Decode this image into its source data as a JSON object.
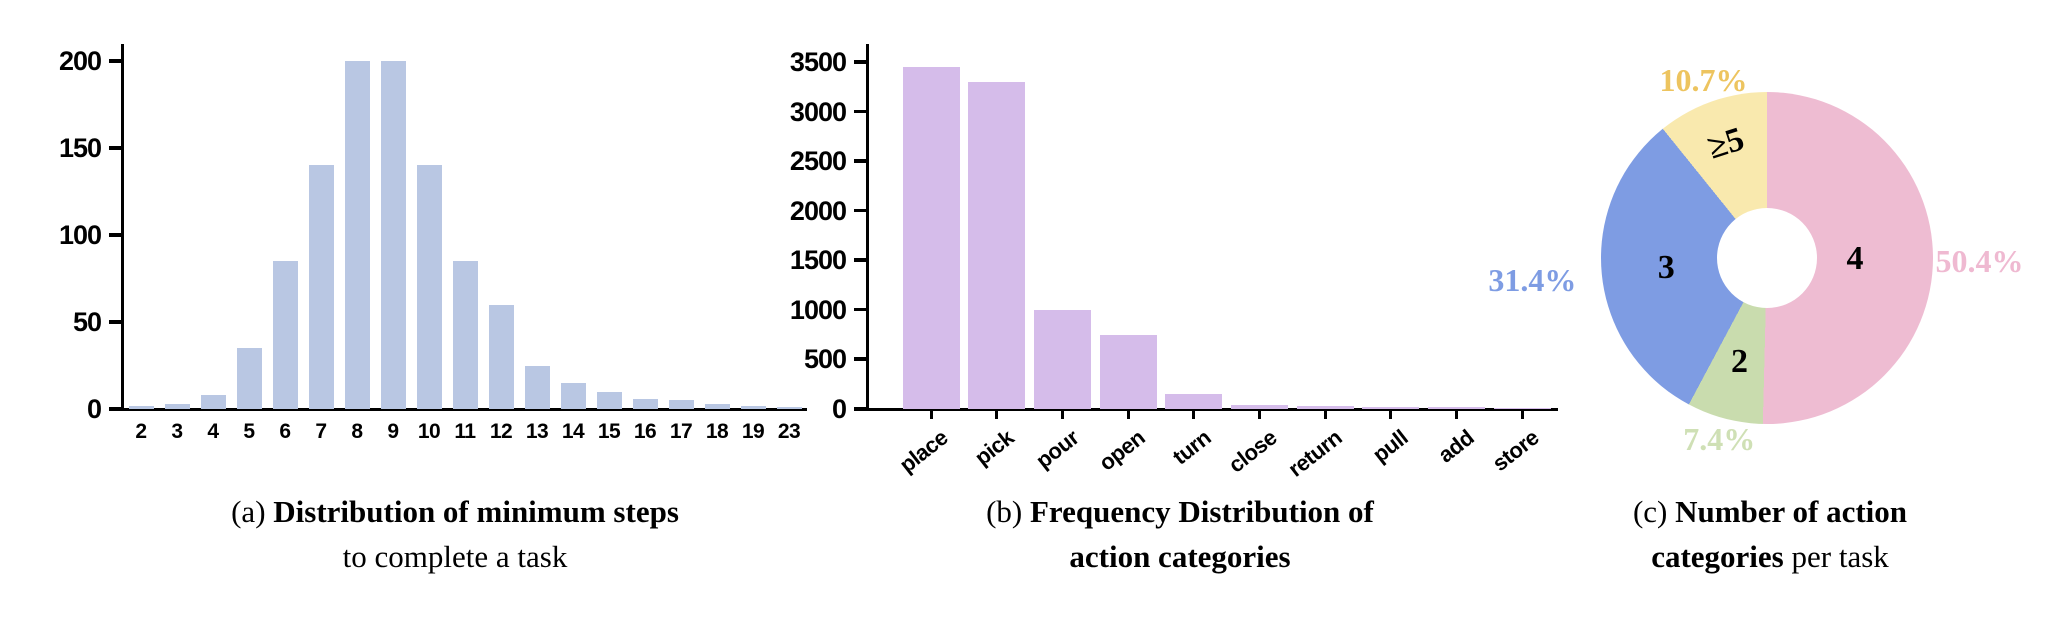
{
  "figure": {
    "captions": {
      "a": {
        "prefix": "(a) ",
        "bold": "Distribution of minimum steps",
        "line2": "to complete a task"
      },
      "b": {
        "prefix": "(b) ",
        "bold": "Frequency Distribution of",
        "line2_bold": "action categories"
      },
      "c": {
        "prefix": "(c) ",
        "bold": "Number of action",
        "line2_bold": "categories",
        "line2_rest": " per task"
      }
    }
  },
  "chart_data": [
    {
      "type": "bar",
      "id": "minimum-steps-distribution",
      "title": "(a) Distribution of minimum steps to complete a task",
      "categories": [
        "2",
        "3",
        "4",
        "5",
        "6",
        "7",
        "8",
        "9",
        "10",
        "11",
        "12",
        "13",
        "14",
        "15",
        "16",
        "17",
        "18",
        "19",
        "23"
      ],
      "values": [
        2,
        3,
        8,
        35,
        85,
        140,
        200,
        200,
        140,
        85,
        60,
        25,
        15,
        10,
        6,
        5,
        3,
        2,
        1
      ],
      "xlabel": "",
      "ylabel": "",
      "ylim": [
        0,
        200
      ],
      "yticks": [
        0,
        50,
        100,
        150,
        200
      ],
      "grid": false,
      "bar_color": "#b9c7e3"
    },
    {
      "type": "bar",
      "id": "action-category-frequency",
      "title": "(b) Frequency Distribution of action categories",
      "categories": [
        "place",
        "pick",
        "pour",
        "open",
        "turn",
        "close",
        "return",
        "pull",
        "add",
        "store"
      ],
      "values": [
        3450,
        3300,
        1000,
        750,
        150,
        45,
        35,
        25,
        20,
        15
      ],
      "xlabel": "",
      "ylabel": "",
      "ylim": [
        0,
        3500
      ],
      "yticks": [
        0,
        500,
        1000,
        1500,
        2000,
        2500,
        3000,
        3500
      ],
      "grid": false,
      "bar_color": "#d5bcea",
      "xtick_rotation": -38
    },
    {
      "type": "pie",
      "id": "action-categories-per-task",
      "title": "(c) Number of action categories per task",
      "donut_hole_ratio": 0.3,
      "slices": [
        {
          "label": "4",
          "pct": 50.4,
          "pct_label": "50.4%",
          "color": "#eebcd2",
          "pct_color": "#efb9d1"
        },
        {
          "label": "2",
          "pct": 7.4,
          "pct_label": "7.4%",
          "color": "#c9dcae",
          "pct_color": "#cfe0b5"
        },
        {
          "label": "3",
          "pct": 31.4,
          "pct_label": "31.4%",
          "color": "#7e9ce3",
          "pct_color": "#7e9ce3"
        },
        {
          "label": "≥5",
          "pct": 10.7,
          "pct_label": "10.7%",
          "color": "#f9e9ae",
          "pct_color": "#edc45f",
          "label_rotation": -18
        }
      ]
    }
  ]
}
